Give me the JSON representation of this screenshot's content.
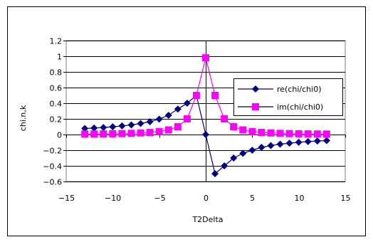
{
  "chart_data": {
    "type": "line",
    "title": "",
    "xlabel": "T2Delta",
    "ylabel": "chi.n,k",
    "xlim": [
      -15,
      15
    ],
    "ylim": [
      -0.6,
      1.2
    ],
    "x_ticks": [
      -15,
      -10,
      -5,
      0,
      5,
      10,
      15
    ],
    "y_ticks": [
      -0.6,
      -0.4,
      -0.2,
      0,
      0.2,
      0.4,
      0.6,
      0.8,
      1,
      1.2
    ],
    "x_tick_labels": [
      "−15",
      "−10",
      "−5",
      "0",
      "5",
      "10",
      "15"
    ],
    "y_tick_labels": [
      "−0.6",
      "−0.4",
      "−0.2",
      "0",
      "0.2",
      "0.4",
      "0.6",
      "0.8",
      "1",
      "1.2"
    ],
    "grid": "horizontal",
    "legend_position": "right",
    "plot_background": "#ffffff",
    "series": [
      {
        "name": "re(chi/chi0)",
        "color": "#000080",
        "marker": "diamond",
        "x": [
          -13,
          -12,
          -11,
          -10,
          -9,
          -8,
          -7,
          -6,
          -5,
          -4,
          -3,
          -2,
          -1,
          0,
          1,
          2,
          3,
          4,
          5,
          6,
          7,
          8,
          9,
          10,
          11,
          12,
          13
        ],
        "y": [
          0.077,
          0.083,
          0.09,
          0.099,
          0.11,
          0.123,
          0.141,
          0.164,
          0.197,
          0.246,
          0.325,
          0.4,
          0.5,
          0,
          -0.5,
          -0.4,
          -0.3,
          -0.24,
          -0.2,
          -0.164,
          -0.141,
          -0.123,
          -0.11,
          -0.099,
          -0.09,
          -0.083,
          -0.077
        ]
      },
      {
        "name": "im(chi/chi0)",
        "color": "#ff00ff",
        "marker": "square",
        "x": [
          -13,
          -12,
          -11,
          -10,
          -9,
          -8,
          -7,
          -6,
          -5,
          -4,
          -3,
          -2,
          -1,
          0,
          1,
          2,
          3,
          4,
          5,
          6,
          7,
          8,
          9,
          10,
          11,
          12,
          13
        ],
        "y": [
          0.006,
          0.007,
          0.008,
          0.01,
          0.012,
          0.015,
          0.02,
          0.027,
          0.038,
          0.059,
          0.1,
          0.2,
          0.5,
          0.98,
          0.5,
          0.2,
          0.1,
          0.059,
          0.038,
          0.027,
          0.02,
          0.015,
          0.012,
          0.01,
          0.008,
          0.007,
          0.006
        ]
      }
    ]
  }
}
